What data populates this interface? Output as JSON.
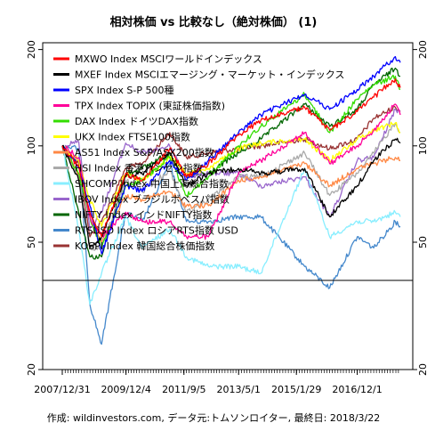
{
  "chart_data": {
    "type": "line",
    "title": "相対株価 vs 比較なし（絶対株価） (1)",
    "xlabel": "",
    "ylabel": "",
    "y_scale": "log",
    "ylim": [
      20,
      210
    ],
    "y_ticks": [
      20,
      50,
      100,
      200
    ],
    "x_start": "2007-12-31",
    "x_end": "2018-03-22",
    "x_tick_labels": [
      "2007/12/31",
      "2009/12/4",
      "2011/9/5",
      "2013/5/1",
      "2015/1/29",
      "2016/12/1"
    ],
    "x_tick_dates": [
      "2007-12-31",
      "2009-12-04",
      "2011-09-05",
      "2013-05-01",
      "2015-01-29",
      "2016-12-01"
    ],
    "reference_line": 38,
    "grid": false,
    "legend_position": "top-left",
    "footer": "作成: wildinvestors.com, データ元:トムソンロイター, 最終日: 2018/3/22",
    "series": [
      {
        "name": "MXWO Index MSCIワールドインデックス",
        "color": "#ff0000",
        "x": [
          "2007-12-31",
          "2008-06-30",
          "2008-10-31",
          "2009-03-09",
          "2009-12-01",
          "2010-06-01",
          "2011-04-01",
          "2011-10-03",
          "2012-06-01",
          "2013-05-01",
          "2014-01-01",
          "2015-05-01",
          "2016-02-01",
          "2016-12-01",
          "2017-06-01",
          "2018-01-26",
          "2018-03-22"
        ],
        "values": [
          100,
          86,
          62,
          52,
          82,
          78,
          98,
          80,
          88,
          108,
          120,
          132,
          112,
          128,
          142,
          162,
          152
        ]
      },
      {
        "name": "MXEF Index MSCIエマージング・マーケット・インデックス",
        "color": "#000000",
        "x": [
          "2007-12-31",
          "2008-06-30",
          "2008-10-31",
          "2009-03-09",
          "2009-12-01",
          "2010-06-01",
          "2011-04-01",
          "2011-10-03",
          "2012-06-01",
          "2013-05-01",
          "2014-01-01",
          "2015-05-01",
          "2016-02-01",
          "2016-12-01",
          "2017-06-01",
          "2018-01-26",
          "2018-03-22"
        ],
        "values": [
          100,
          78,
          48,
          52,
          80,
          82,
          95,
          75,
          82,
          85,
          82,
          85,
          60,
          75,
          90,
          105,
          102
        ]
      },
      {
        "name": "SPX Index S-P 500種",
        "color": "#0000ff",
        "x": [
          "2007-12-31",
          "2008-06-30",
          "2008-10-31",
          "2009-03-09",
          "2009-12-01",
          "2010-06-01",
          "2011-04-01",
          "2011-10-03",
          "2012-06-01",
          "2013-05-01",
          "2014-01-01",
          "2015-05-01",
          "2016-02-01",
          "2016-12-01",
          "2017-06-01",
          "2018-01-26",
          "2018-03-22"
        ],
        "values": [
          100,
          86,
          65,
          46,
          75,
          72,
          90,
          78,
          90,
          110,
          125,
          145,
          130,
          150,
          165,
          190,
          182
        ]
      },
      {
        "name": "TPX Index TOPIX (東証株価指数)",
        "color": "#ff0099",
        "x": [
          "2007-12-31",
          "2008-06-30",
          "2008-10-31",
          "2009-03-09",
          "2009-12-01",
          "2010-06-01",
          "2011-04-01",
          "2011-10-03",
          "2012-06-01",
          "2013-05-01",
          "2014-01-01",
          "2015-05-01",
          "2016-02-01",
          "2016-12-01",
          "2017-06-01",
          "2018-01-26",
          "2018-03-22"
        ],
        "values": [
          100,
          92,
          60,
          52,
          62,
          58,
          58,
          52,
          52,
          82,
          90,
          110,
          88,
          100,
          112,
          135,
          125
        ]
      },
      {
        "name": "DAX Index ドイツDAX指数",
        "color": "#33dd00",
        "x": [
          "2007-12-31",
          "2008-06-30",
          "2008-10-31",
          "2009-03-09",
          "2009-12-01",
          "2010-06-01",
          "2011-04-01",
          "2011-10-03",
          "2012-06-01",
          "2013-05-01",
          "2014-01-01",
          "2015-05-01",
          "2016-02-01",
          "2016-12-01",
          "2017-06-01",
          "2018-01-26",
          "2018-03-22"
        ],
        "values": [
          100,
          82,
          60,
          48,
          75,
          78,
          92,
          70,
          80,
          100,
          115,
          145,
          110,
          140,
          155,
          165,
          150
        ]
      },
      {
        "name": "UKX Index FTSE100指数",
        "color": "#ffff00",
        "x": [
          "2007-12-31",
          "2008-06-30",
          "2008-10-31",
          "2009-03-09",
          "2009-12-01",
          "2010-06-01",
          "2011-04-01",
          "2011-10-03",
          "2012-06-01",
          "2013-05-01",
          "2014-01-01",
          "2015-05-01",
          "2016-02-01",
          "2016-12-01",
          "2017-06-01",
          "2018-01-26",
          "2018-03-22"
        ],
        "values": [
          100,
          90,
          68,
          56,
          82,
          78,
          92,
          82,
          85,
          98,
          102,
          105,
          90,
          105,
          112,
          118,
          110
        ]
      },
      {
        "name": "AS51 Index S&P/ASX200指数",
        "color": "#ff8844",
        "x": [
          "2007-12-31",
          "2008-06-30",
          "2008-10-31",
          "2009-03-09",
          "2009-12-01",
          "2010-06-01",
          "2011-04-01",
          "2011-10-03",
          "2012-06-01",
          "2013-05-01",
          "2014-01-01",
          "2015-05-01",
          "2016-02-01",
          "2016-12-01",
          "2017-06-01",
          "2018-01-26",
          "2018-03-22"
        ],
        "values": [
          100,
          82,
          62,
          50,
          70,
          68,
          72,
          65,
          65,
          78,
          80,
          88,
          75,
          85,
          88,
          92,
          90
        ]
      },
      {
        "name": "HSI Index 香港ハンセン指数",
        "color": "#aaaaaa",
        "x": [
          "2007-12-31",
          "2008-06-30",
          "2008-10-31",
          "2009-03-09",
          "2009-12-01",
          "2010-06-01",
          "2011-04-01",
          "2011-10-03",
          "2012-06-01",
          "2013-05-01",
          "2014-01-01",
          "2015-05-01",
          "2016-02-01",
          "2016-12-01",
          "2017-06-01",
          "2018-01-26",
          "2018-03-22"
        ],
        "values": [
          100,
          80,
          48,
          48,
          78,
          72,
          84,
          62,
          68,
          80,
          80,
          95,
          70,
          82,
          95,
          118,
          110
        ]
      },
      {
        "name": "SHCOMP Index 中国上海総合指数",
        "color": "#88eeff",
        "x": [
          "2007-12-31",
          "2008-06-30",
          "2008-10-31",
          "2009-03-09",
          "2009-12-01",
          "2010-06-01",
          "2011-04-01",
          "2011-10-03",
          "2012-06-01",
          "2013-05-01",
          "2014-01-01",
          "2015-05-01",
          "2016-02-01",
          "2016-12-01",
          "2017-06-01",
          "2018-01-26",
          "2018-03-22"
        ],
        "values": [
          100,
          55,
          32,
          40,
          60,
          48,
          55,
          45,
          42,
          42,
          40,
          85,
          52,
          58,
          58,
          62,
          60
        ]
      },
      {
        "name": "IBOV Index ブラジルボベスパ指数",
        "color": "#9966cc",
        "x": [
          "2007-12-31",
          "2008-06-30",
          "2008-10-31",
          "2009-03-09",
          "2009-12-01",
          "2010-06-01",
          "2011-04-01",
          "2011-10-03",
          "2012-06-01",
          "2013-05-01",
          "2014-01-01",
          "2015-05-01",
          "2016-02-01",
          "2016-12-01",
          "2017-06-01",
          "2018-01-26",
          "2018-03-22"
        ],
        "values": [
          100,
          103,
          55,
          62,
          102,
          95,
          100,
          80,
          82,
          82,
          75,
          80,
          60,
          90,
          92,
          130,
          128
        ]
      },
      {
        "name": "NIFTY Index インドNIFTY指数",
        "color": "#006600",
        "x": [
          "2007-12-31",
          "2008-06-30",
          "2008-10-31",
          "2009-03-09",
          "2009-12-01",
          "2010-06-01",
          "2011-04-01",
          "2011-10-03",
          "2012-06-01",
          "2013-05-01",
          "2014-01-01",
          "2015-05-01",
          "2016-02-01",
          "2016-12-01",
          "2017-06-01",
          "2018-01-26",
          "2018-03-22"
        ],
        "values": [
          100,
          62,
          45,
          45,
          82,
          85,
          95,
          80,
          82,
          95,
          105,
          135,
          115,
          130,
          155,
          175,
          165
        ]
      },
      {
        "name": "RTSUSD Index ロシアRTS指数 USD",
        "color": "#4488cc",
        "x": [
          "2007-12-31",
          "2008-06-30",
          "2008-10-31",
          "2009-03-09",
          "2009-12-01",
          "2010-06-01",
          "2011-04-01",
          "2011-10-03",
          "2012-06-01",
          "2013-05-01",
          "2014-01-01",
          "2015-05-01",
          "2016-02-01",
          "2016-12-01",
          "2017-06-01",
          "2018-01-26",
          "2018-03-22"
        ],
        "values": [
          100,
          98,
          32,
          24,
          62,
          58,
          88,
          58,
          58,
          60,
          60,
          42,
          36,
          52,
          48,
          58,
          56
        ]
      },
      {
        "name": "KOSPI Index 韓国総合株価指数",
        "color": "#993333",
        "x": [
          "2007-12-31",
          "2008-06-30",
          "2008-10-31",
          "2009-03-09",
          "2009-12-01",
          "2010-06-01",
          "2011-04-01",
          "2011-10-03",
          "2012-06-01",
          "2013-05-01",
          "2014-01-01",
          "2015-05-01",
          "2016-02-01",
          "2016-12-01",
          "2017-06-01",
          "2018-01-26",
          "2018-03-22"
        ],
        "values": [
          100,
          88,
          52,
          58,
          85,
          88,
          110,
          92,
          95,
          98,
          100,
          105,
          98,
          105,
          122,
          132,
          128
        ]
      }
    ]
  }
}
